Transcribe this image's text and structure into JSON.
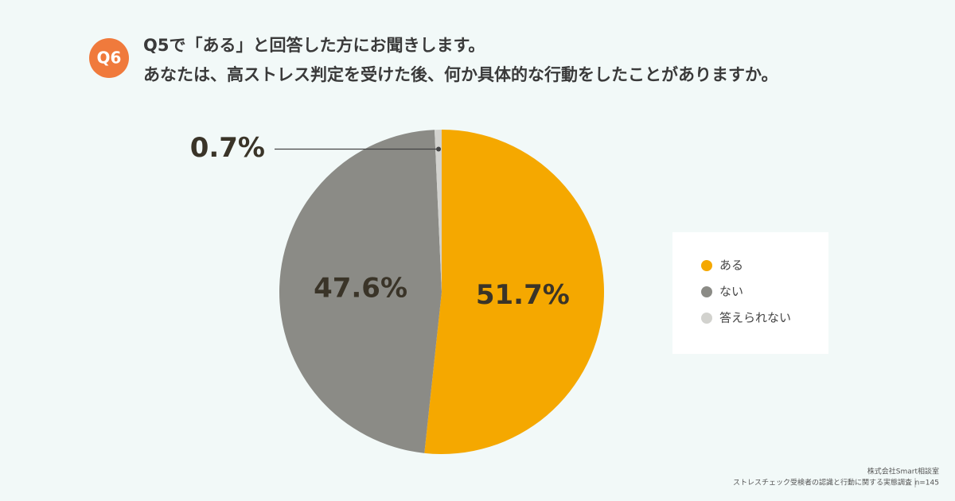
{
  "chart_data": {
    "type": "pie",
    "badge": "Q6",
    "title": "Q5で「ある」と回答した方にお聞きします。",
    "subtitle": "あなたは、高ストレス判定を受けた後、何か具体的な行動をしたことがありますか。",
    "categories": [
      "ある",
      "ない",
      "答えられない"
    ],
    "values": [
      51.7,
      47.6,
      0.7
    ],
    "value_labels": [
      "51.7%",
      "47.6%",
      "0.7%"
    ],
    "colors": [
      "#f5a800",
      "#8b8b86",
      "#d2d2ce"
    ],
    "legend": "right",
    "source": "株式会社Smart相談室",
    "survey": "ストレスチェック受検者の認識と行動に関する実態調査",
    "sample": "n=145"
  }
}
